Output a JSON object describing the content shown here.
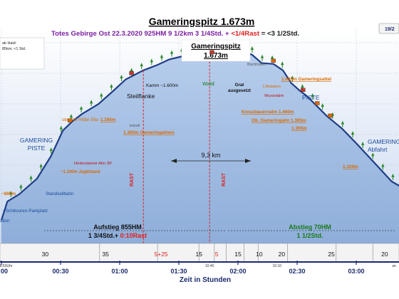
{
  "header": {
    "title": "Gameringspitz  1.673m",
    "subtitle_part1": "Totes Gebirge Ost  22.3.2020   925HM  9 1/2km    3 1/4Std. + ",
    "subtitle_rast": "<1/4Rast",
    "subtitle_part2": " = <3 1/2Std.",
    "page_badge": "19/2"
  },
  "peak_label": {
    "line1": "Gameringspitz",
    "line2": "1.673m"
  },
  "left_note": {
    "line1": "ab Haid:",
    "line2": "85km; <1 Std."
  },
  "chart_data": {
    "type": "area",
    "xlabel": "Zeit in Stunden",
    "x_ticks": [
      "0:00",
      "00:30",
      "01:00",
      "01:30",
      "02:00",
      "02:30",
      "03:00"
    ],
    "x_minor": [
      {
        "t": "10:40",
        "x": 1.76
      },
      {
        "t": "10:10",
        "x": 2.33
      },
      {
        "t": "8:50Uhr",
        "x": 0.04
      },
      {
        "t": "an",
        "x": 3.32
      }
    ],
    "grid": true,
    "profile_hours": [
      0.0,
      0.05,
      0.15,
      0.3,
      0.42,
      0.52,
      0.6,
      0.68,
      0.82,
      0.95,
      1.05,
      1.2,
      1.32,
      1.42,
      1.55,
      1.65,
      1.72,
      1.76,
      1.82,
      1.9,
      1.97,
      2.05,
      2.12,
      2.2,
      2.3,
      2.38,
      2.45,
      2.52,
      2.58,
      2.65,
      2.75,
      2.88,
      3.0,
      3.1,
      3.2,
      3.3,
      3.38
    ],
    "profile_elev_m": [
      748,
      850,
      890,
      975,
      1100,
      1240,
      1290,
      1330,
      1385,
      1460,
      1520,
      1570,
      1600,
      1630,
      1650,
      1655,
      1655,
      1658,
      1640,
      1640,
      1660,
      1673,
      1655,
      1610,
      1605,
      1570,
      1500,
      1460,
      1430,
      1385,
      1320,
      1250,
      1170,
      1100,
      1030,
      960,
      930
    ],
    "rast_hours": [
      1.2,
      1.76
    ],
    "distance_label": "9,3 km",
    "segments": [
      {
        "label": "30",
        "x": 0.37,
        "red": false
      },
      {
        "label": "35",
        "x": 0.88,
        "red": false
      },
      {
        "label": "5+25",
        "x": 1.35,
        "red": true
      },
      {
        "label": "15",
        "x": 1.67,
        "red": false
      },
      {
        "label": "5",
        "x": 1.82,
        "red": true
      },
      {
        "label": "15",
        "x": 2.0,
        "red": false
      },
      {
        "label": "10",
        "x": 2.18,
        "red": false
      },
      {
        "label": "20",
        "x": 2.37,
        "red": false
      },
      {
        "label": "25",
        "x": 2.79,
        "red": false
      },
      {
        "label": "20",
        "x": 3.24,
        "red": false
      }
    ],
    "segment_dividers": [
      0.83,
      1.32,
      1.67,
      1.8,
      1.9,
      2.05,
      2.17,
      2.42,
      2.83,
      3.14
    ]
  },
  "labels": {
    "gamering_piste_left": {
      "l1": "GAMERING",
      "l2": "PISTE"
    },
    "gamering_abfahrt": {
      "l1": "GAMERING",
      "l2": "Abfahrt"
    },
    "piste_right": "PISTE",
    "steilflanke": "Steilflanke",
    "wald": "Wald",
    "grat": {
      "l1": "Grat",
      "l2": "ausgesetzt"
    },
    "kamm": "Kamm ~1.600m",
    "bischhuetten": "Bischhütten",
    "gameringsattel": "1.605m Gameringsattel",
    "liftstation": "Liftstation",
    "wurzelalm": "Wurzelalm",
    "kreuzbauernalm": "Kreuzbauernalm 1.460m",
    "ob_gameringalm": "Ob. Gameringalm 1.385m",
    "h1365": "1.365m",
    "h1100_right": "1.100m",
    "oberste_huette": "oberste Hütte 59a",
    "h1385": "1.385m",
    "bruendl": "bründl",
    "gameringalmen": "1.365m Gameringalmen",
    "hintersteiner": "Hintersteiner Alm 30'",
    "jagdstand": "~1.100m Jagdstand",
    "h890": "~890m",
    "standseilbahn": "Standseilbahn",
    "parkplatz": "~Schitouren-Parkplatz",
    "station": "ation",
    "rast": "RAST"
  },
  "summary": {
    "ascent_title": "Aufstieg 855HM",
    "ascent_time": "1 3/4Std.+ ",
    "ascent_rast": "0:10Rast",
    "descent_title": "Abstieg 70HM",
    "descent_time": "1 1/2Std."
  },
  "colors": {
    "sky_top": "#ffffff",
    "sky_bottom": "#c9d8ef",
    "fill": "#a9c1e4",
    "line": "#1f3e86",
    "purple": "#7b1fa2",
    "red": "#e02020",
    "green": "#1a7a1a",
    "navy": "#1a2a6c",
    "orange": "#d86a00"
  }
}
